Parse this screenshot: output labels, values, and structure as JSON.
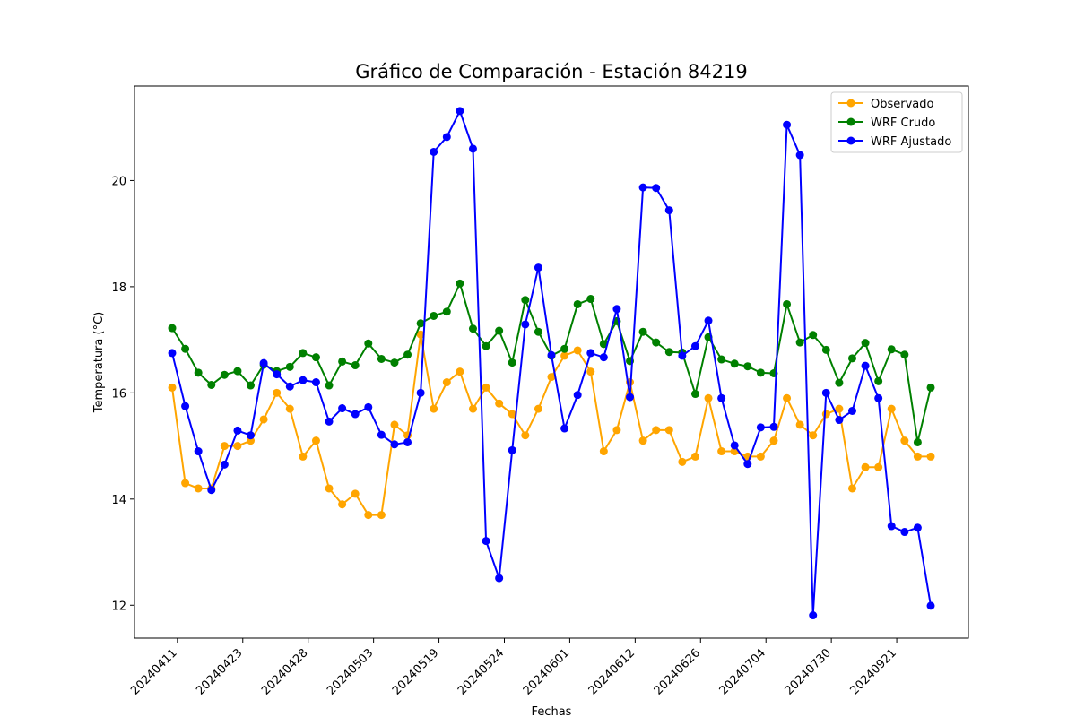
{
  "chart_data": {
    "type": "line",
    "title": "Gráfico de Comparación - Estación 84219",
    "xlabel": "Fechas",
    "ylabel": "Temperatura (°C)",
    "ylim": [
      11.38,
      21.78
    ],
    "yticks": [
      12,
      14,
      16,
      18,
      20
    ],
    "x_count": 59,
    "xticks": [
      {
        "index": 0.4,
        "label": "20240411"
      },
      {
        "index": 5.4,
        "label": "20240423"
      },
      {
        "index": 10.4,
        "label": "20240428"
      },
      {
        "index": 15.4,
        "label": "20240503"
      },
      {
        "index": 20.4,
        "label": "20240519"
      },
      {
        "index": 25.4,
        "label": "20240524"
      },
      {
        "index": 30.4,
        "label": "20240601"
      },
      {
        "index": 35.4,
        "label": "20240612"
      },
      {
        "index": 40.4,
        "label": "20240626"
      },
      {
        "index": 45.4,
        "label": "20240704"
      },
      {
        "index": 50.4,
        "label": "20240730"
      },
      {
        "index": 55.4,
        "label": "20240921"
      }
    ],
    "legend_position": "top-right",
    "grid": false,
    "series": [
      {
        "name": "Observado",
        "color": "#ffa500",
        "values": [
          16.1,
          14.3,
          14.2,
          14.2,
          15.0,
          15.0,
          15.1,
          15.5,
          16.0,
          15.7,
          14.8,
          15.1,
          14.2,
          13.9,
          14.1,
          13.7,
          13.7,
          15.4,
          15.2,
          17.1,
          15.7,
          16.2,
          16.4,
          15.7,
          16.1,
          15.8,
          15.6,
          15.2,
          15.7,
          16.3,
          16.7,
          16.8,
          16.4,
          14.9,
          15.3,
          16.2,
          15.1,
          15.3,
          15.3,
          14.7,
          14.8,
          15.9,
          14.9,
          14.9,
          14.8,
          14.8,
          15.1,
          15.9,
          15.4,
          15.2,
          15.6,
          15.7,
          14.2,
          14.6,
          14.6,
          15.7,
          15.1,
          14.8,
          14.8
        ]
      },
      {
        "name": "WRF Crudo",
        "color": "#008000",
        "values": [
          17.22,
          16.83,
          16.38,
          16.15,
          16.34,
          16.41,
          16.14,
          16.53,
          16.41,
          16.49,
          16.75,
          16.67,
          16.14,
          16.59,
          16.52,
          16.93,
          16.64,
          16.57,
          16.72,
          17.31,
          17.45,
          17.53,
          18.06,
          17.21,
          16.88,
          17.17,
          16.57,
          17.75,
          17.15,
          16.7,
          16.83,
          17.67,
          17.77,
          16.92,
          17.35,
          16.6,
          17.15,
          16.95,
          16.77,
          16.76,
          15.98,
          17.05,
          16.63,
          16.55,
          16.5,
          16.38,
          16.37,
          17.67,
          16.95,
          17.09,
          16.81,
          16.19,
          16.65,
          16.94,
          16.22,
          16.82,
          16.72,
          15.07,
          16.1
        ]
      },
      {
        "name": "WRF Ajustado",
        "color": "#0000ff",
        "values": [
          16.75,
          15.75,
          14.9,
          14.17,
          14.65,
          15.29,
          15.2,
          16.56,
          16.35,
          16.12,
          16.24,
          16.2,
          15.46,
          15.71,
          15.6,
          15.73,
          15.21,
          15.03,
          15.07,
          16.0,
          20.54,
          20.82,
          21.31,
          20.6,
          13.21,
          12.51,
          14.92,
          17.29,
          18.36,
          16.71,
          15.33,
          15.96,
          16.75,
          16.67,
          17.58,
          15.92,
          19.87,
          19.86,
          19.44,
          16.7,
          16.88,
          17.36,
          15.9,
          15.01,
          14.66,
          15.35,
          15.36,
          21.05,
          20.48,
          11.81,
          16.0,
          15.49,
          15.66,
          16.51,
          15.9,
          13.49,
          13.38,
          13.46,
          11.99
        ]
      }
    ]
  }
}
